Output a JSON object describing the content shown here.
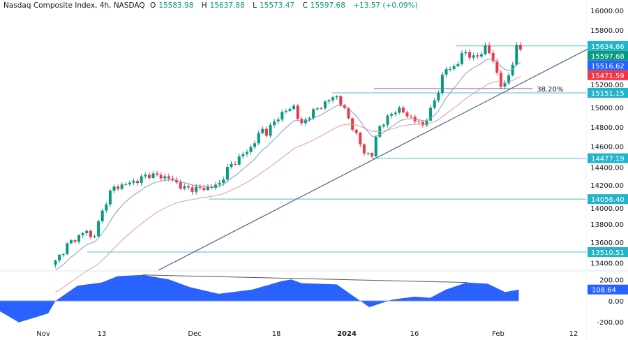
{
  "header": {
    "symbol": "Nasdaq Composite Index, 4h, NASDAQ",
    "open_label": "O",
    "open": "15583.98",
    "high_label": "H",
    "high": "15637.88",
    "low_label": "L",
    "low": "15573.47",
    "close_label": "C",
    "close": "15597.68",
    "change": "+13.57 (+0.09%)"
  },
  "colors": {
    "up": "#089981",
    "down": "#f23645",
    "ema_fast": "#7f9ccf",
    "ema_slow": "#e59a9a",
    "level": "#4fbfcb",
    "trendline": "#4a6594",
    "fib": "#8a6ba8",
    "badge_level": "#22b5c9",
    "badge_last": "#089981",
    "badge_fast": "#2962ff",
    "badge_slow": "#f23645",
    "oscillator": "#2962ff"
  },
  "chart_data": [
    {
      "type": "candlestick",
      "title": "Nasdaq Composite Index, 4h, NASDAQ",
      "ylim": [
        13300,
        16050
      ],
      "y_ticks": [
        "16000.00",
        "15800.00",
        "15200.00",
        "15000.00",
        "14800.00",
        "14600.00",
        "14400.00",
        "14200.00",
        "14000.00",
        "13800.00",
        "13600.00",
        "13400.00"
      ],
      "x_ticks": [
        {
          "label": "Nov",
          "date": "2023-11-01",
          "bold": false
        },
        {
          "label": "13",
          "date": "2023-11-13",
          "bold": false
        },
        {
          "label": "Dec",
          "date": "2023-12-01",
          "bold": false
        },
        {
          "label": "18",
          "date": "2023-12-18",
          "bold": false
        },
        {
          "label": "2024",
          "date": "2024-01-01",
          "bold": true
        },
        {
          "label": "16",
          "date": "2024-01-16",
          "bold": false
        },
        {
          "label": "Feb",
          "date": "2024-02-01",
          "bold": false
        },
        {
          "label": "12",
          "date": "2024-02-12",
          "bold": false
        }
      ],
      "close_path": [
        [
          "2023-11-03T12",
          13410
        ],
        [
          "2023-11-06",
          13590
        ],
        [
          "2023-11-10",
          13735
        ],
        [
          "2023-11-11",
          13625
        ],
        [
          "2023-11-14",
          14060
        ],
        [
          "2023-11-15",
          14165
        ],
        [
          "2023-11-20",
          14250
        ],
        [
          "2023-11-22",
          14310
        ],
        [
          "2023-11-26",
          14275
        ],
        [
          "2023-11-29",
          14165
        ],
        [
          "2023-12-03",
          14165
        ],
        [
          "2023-12-06",
          14200
        ],
        [
          "2023-12-08",
          14380
        ],
        [
          "2023-12-13",
          14600
        ],
        [
          "2023-12-15",
          14780
        ],
        [
          "2023-12-16",
          14740
        ],
        [
          "2023-12-18T14",
          14920
        ],
        [
          "2023-12-22",
          15030
        ],
        [
          "2023-12-22T12",
          14780
        ],
        [
          "2023-12-24T12",
          14920
        ],
        [
          "2023-12-29",
          15100
        ],
        [
          "2023-12-30",
          15115
        ],
        [
          "2023-12-31",
          15030
        ],
        [
          "2024-01-02T12",
          14780
        ],
        [
          "2024-01-04T12",
          14560
        ],
        [
          "2024-01-06T12",
          14490
        ],
        [
          "2024-01-07",
          14560
        ],
        [
          "2024-01-07T18",
          14780
        ],
        [
          "2024-01-10",
          14885
        ],
        [
          "2024-01-12",
          14990
        ],
        [
          "2024-01-14T12",
          14920
        ],
        [
          "2024-01-17T12",
          14810
        ],
        [
          "2024-01-19",
          14955
        ],
        [
          "2024-01-20T12",
          15170
        ],
        [
          "2024-01-21T18",
          15390
        ],
        [
          "2024-01-24",
          15425
        ],
        [
          "2024-01-25T12",
          15590
        ],
        [
          "2024-01-27T12",
          15495
        ],
        [
          "2024-01-29T12",
          15620
        ],
        [
          "2024-01-30T18",
          15530
        ],
        [
          "2024-02-01",
          15315
        ],
        [
          "2024-02-01T16",
          15170
        ],
        [
          "2024-02-03",
          15425
        ],
        [
          "2024-02-03T12",
          15620
        ],
        [
          "2024-02-04",
          15597.68
        ]
      ],
      "ema_fast_last": "15516.62",
      "ema_slow_last": "15471.59",
      "last_price": "15597.68",
      "levels": [
        {
          "value": 15634.66,
          "label": "15634.66",
          "from": "2024-01-24"
        },
        {
          "value": 15151.15,
          "label": "15151.15",
          "from": "2023-12-29"
        },
        {
          "value": 14477.19,
          "label": "14477.19",
          "from": "2024-01-06T12"
        },
        {
          "value": 14056.4,
          "label": "14056.40",
          "from": "2023-12-04"
        },
        {
          "value": 13510.51,
          "label": "13510.51",
          "from": "2023-11-10"
        }
      ],
      "fib": {
        "value": 15195,
        "label": "38.20%",
        "from": "2024-01-07",
        "to": "2024-02-05"
      },
      "trendline": [
        [
          "2023-11-24",
          13324
        ],
        [
          "2024-02-14",
          15604
        ]
      ]
    },
    {
      "type": "area",
      "ylim": [
        -260,
        240
      ],
      "y_ticks": [
        "200.00",
        "0.00",
        "-200.00"
      ],
      "last_value": "108.64",
      "points": [
        [
          "2023-10-23",
          -96
        ],
        [
          "2023-10-27",
          -205
        ],
        [
          "2023-11-02",
          -120
        ],
        [
          "2023-11-03T12",
          0
        ],
        [
          "2023-11-08",
          145
        ],
        [
          "2023-11-13",
          176
        ],
        [
          "2023-11-16",
          236
        ],
        [
          "2023-11-21",
          248
        ],
        [
          "2023-11-26",
          205
        ],
        [
          "2023-11-30",
          133
        ],
        [
          "2023-12-06",
          67
        ],
        [
          "2023-12-13",
          108
        ],
        [
          "2023-12-19",
          188
        ],
        [
          "2023-12-21",
          205
        ],
        [
          "2023-12-23",
          169
        ],
        [
          "2023-12-30",
          157
        ],
        [
          "2024-01-04",
          0
        ],
        [
          "2024-01-06",
          -60
        ],
        [
          "2024-01-11",
          12
        ],
        [
          "2024-01-16",
          41
        ],
        [
          "2024-01-19",
          29
        ],
        [
          "2024-01-22",
          108
        ],
        [
          "2024-01-26",
          176
        ],
        [
          "2024-01-30",
          164
        ],
        [
          "2024-02-02",
          84
        ],
        [
          "2024-02-04",
          108.64
        ]
      ],
      "divergence_line": [
        [
          "2023-11-21",
          248
        ],
        [
          "2024-01-26",
          176
        ]
      ]
    }
  ]
}
